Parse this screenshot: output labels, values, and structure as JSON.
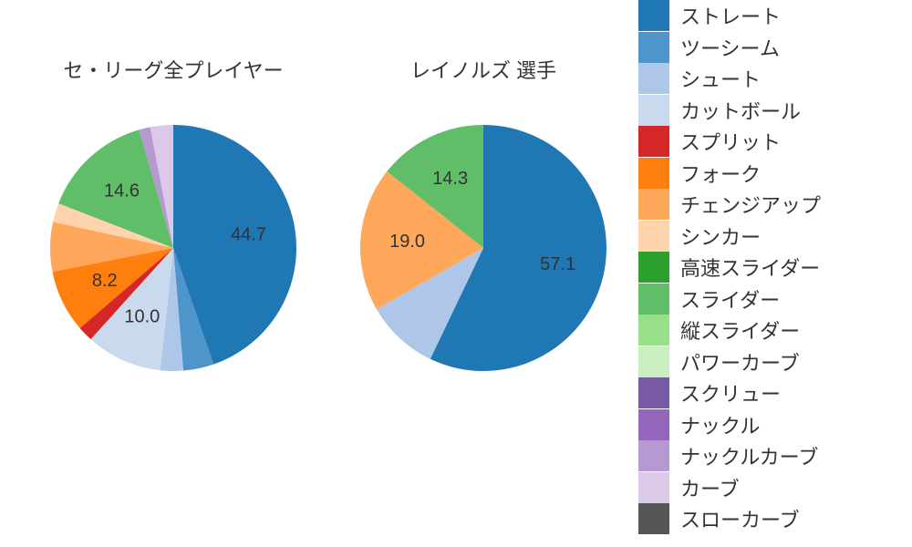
{
  "background_color": "#ffffff",
  "text_color": "#333333",
  "title_fontsize": 22,
  "label_fontsize": 20,
  "legend_fontsize": 22,
  "pie_radius": 135,
  "start_angle_deg": 90,
  "direction": "clockwise",
  "pitch_types": [
    {
      "name": "ストレート",
      "color": "#1f77b4"
    },
    {
      "name": "ツーシーム",
      "color": "#4e95cb"
    },
    {
      "name": "シュート",
      "color": "#aec7e8"
    },
    {
      "name": "カットボール",
      "color": "#c9daee"
    },
    {
      "name": "スプリット",
      "color": "#d62728"
    },
    {
      "name": "フォーク",
      "color": "#ff7f0e"
    },
    {
      "name": "チェンジアップ",
      "color": "#ffa75a"
    },
    {
      "name": "シンカー",
      "color": "#ffd4ac"
    },
    {
      "name": "高速スライダー",
      "color": "#2ca02c"
    },
    {
      "name": "スライダー",
      "color": "#60bd68"
    },
    {
      "name": "縦スライダー",
      "color": "#98df8a"
    },
    {
      "name": "パワーカーブ",
      "color": "#c9efc1"
    },
    {
      "name": "スクリュー",
      "color": "#7859a6"
    },
    {
      "name": "ナックル",
      "color": "#9467bd"
    },
    {
      "name": "ナックルカーブ",
      "color": "#b699d0"
    },
    {
      "name": "カーブ",
      "color": "#dcc9e8"
    },
    {
      "name": "スローカーブ",
      "color": "#555555"
    }
  ],
  "charts": [
    {
      "title": "セ・リーグ全プレイヤー",
      "slices": [
        {
          "pitch": "ストレート",
          "value": 44.7,
          "show_label": true
        },
        {
          "pitch": "ツーシーム",
          "value": 4.0,
          "show_label": false
        },
        {
          "pitch": "シュート",
          "value": 3.0,
          "show_label": false
        },
        {
          "pitch": "カットボール",
          "value": 10.0,
          "show_label": true
        },
        {
          "pitch": "スプリット",
          "value": 2.0,
          "show_label": false
        },
        {
          "pitch": "フォーク",
          "value": 8.2,
          "show_label": true
        },
        {
          "pitch": "チェンジアップ",
          "value": 6.5,
          "show_label": false
        },
        {
          "pitch": "シンカー",
          "value": 2.5,
          "show_label": false
        },
        {
          "pitch": "スライダー",
          "value": 14.6,
          "show_label": true
        },
        {
          "pitch": "ナックルカーブ",
          "value": 1.5,
          "show_label": false
        },
        {
          "pitch": "カーブ",
          "value": 3.0,
          "show_label": false
        }
      ]
    },
    {
      "title": "レイノルズ 選手",
      "slices": [
        {
          "pitch": "ストレート",
          "value": 57.1,
          "show_label": true
        },
        {
          "pitch": "シュート",
          "value": 9.6,
          "show_label": false
        },
        {
          "pitch": "チェンジアップ",
          "value": 19.0,
          "show_label": true
        },
        {
          "pitch": "スライダー",
          "value": 14.3,
          "show_label": true
        }
      ]
    }
  ]
}
